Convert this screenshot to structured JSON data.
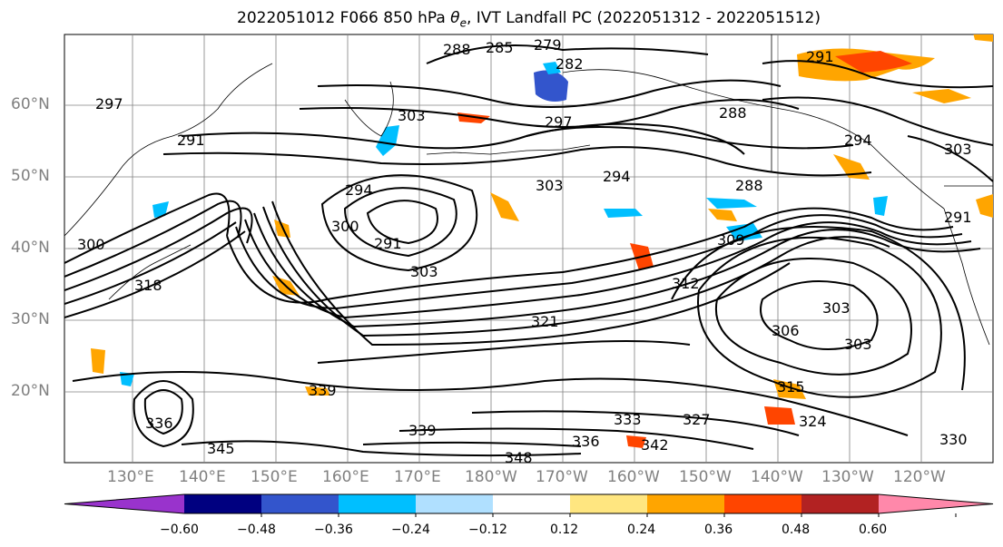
{
  "title": "2022051012 F066 850 hPa θe, IVT Landfall PC (2022051312 - 2022051512)",
  "lat_labels": [
    "60°N",
    "50°N",
    "40°N",
    "30°N",
    "20°N"
  ],
  "lon_labels": [
    "130°E",
    "140°E",
    "150°E",
    "160°E",
    "170°E",
    "180°W",
    "170°W",
    "160°W",
    "150°W",
    "140°W",
    "130°W",
    "120°W"
  ],
  "contour_labels": [
    "279",
    "282",
    "285",
    "288",
    "288",
    "288",
    "291",
    "291",
    "291",
    "291",
    "294",
    "294",
    "294",
    "297",
    "297",
    "300",
    "300",
    "303",
    "303",
    "303",
    "303",
    "303",
    "303",
    "306",
    "309",
    "312",
    "315",
    "318",
    "321",
    "324",
    "327",
    "330",
    "333",
    "336",
    "336",
    "339",
    "339",
    "342",
    "345",
    "348"
  ],
  "colorbar": {
    "colors": [
      "#9933cc",
      "#000080",
      "#3355cc",
      "#00bfff",
      "#b0e0ff",
      "#ffffff",
      "#ffe680",
      "#ffa500",
      "#ff4500",
      "#b22222",
      "#ff88aa"
    ],
    "tick_labels": [
      "−0.60",
      "−0.48",
      "−0.36",
      "−0.24",
      "−0.12",
      "0.12",
      "0.24",
      "0.36",
      "0.48",
      "0.60"
    ]
  },
  "contour_color": "#000000",
  "grid_color": "#808080"
}
